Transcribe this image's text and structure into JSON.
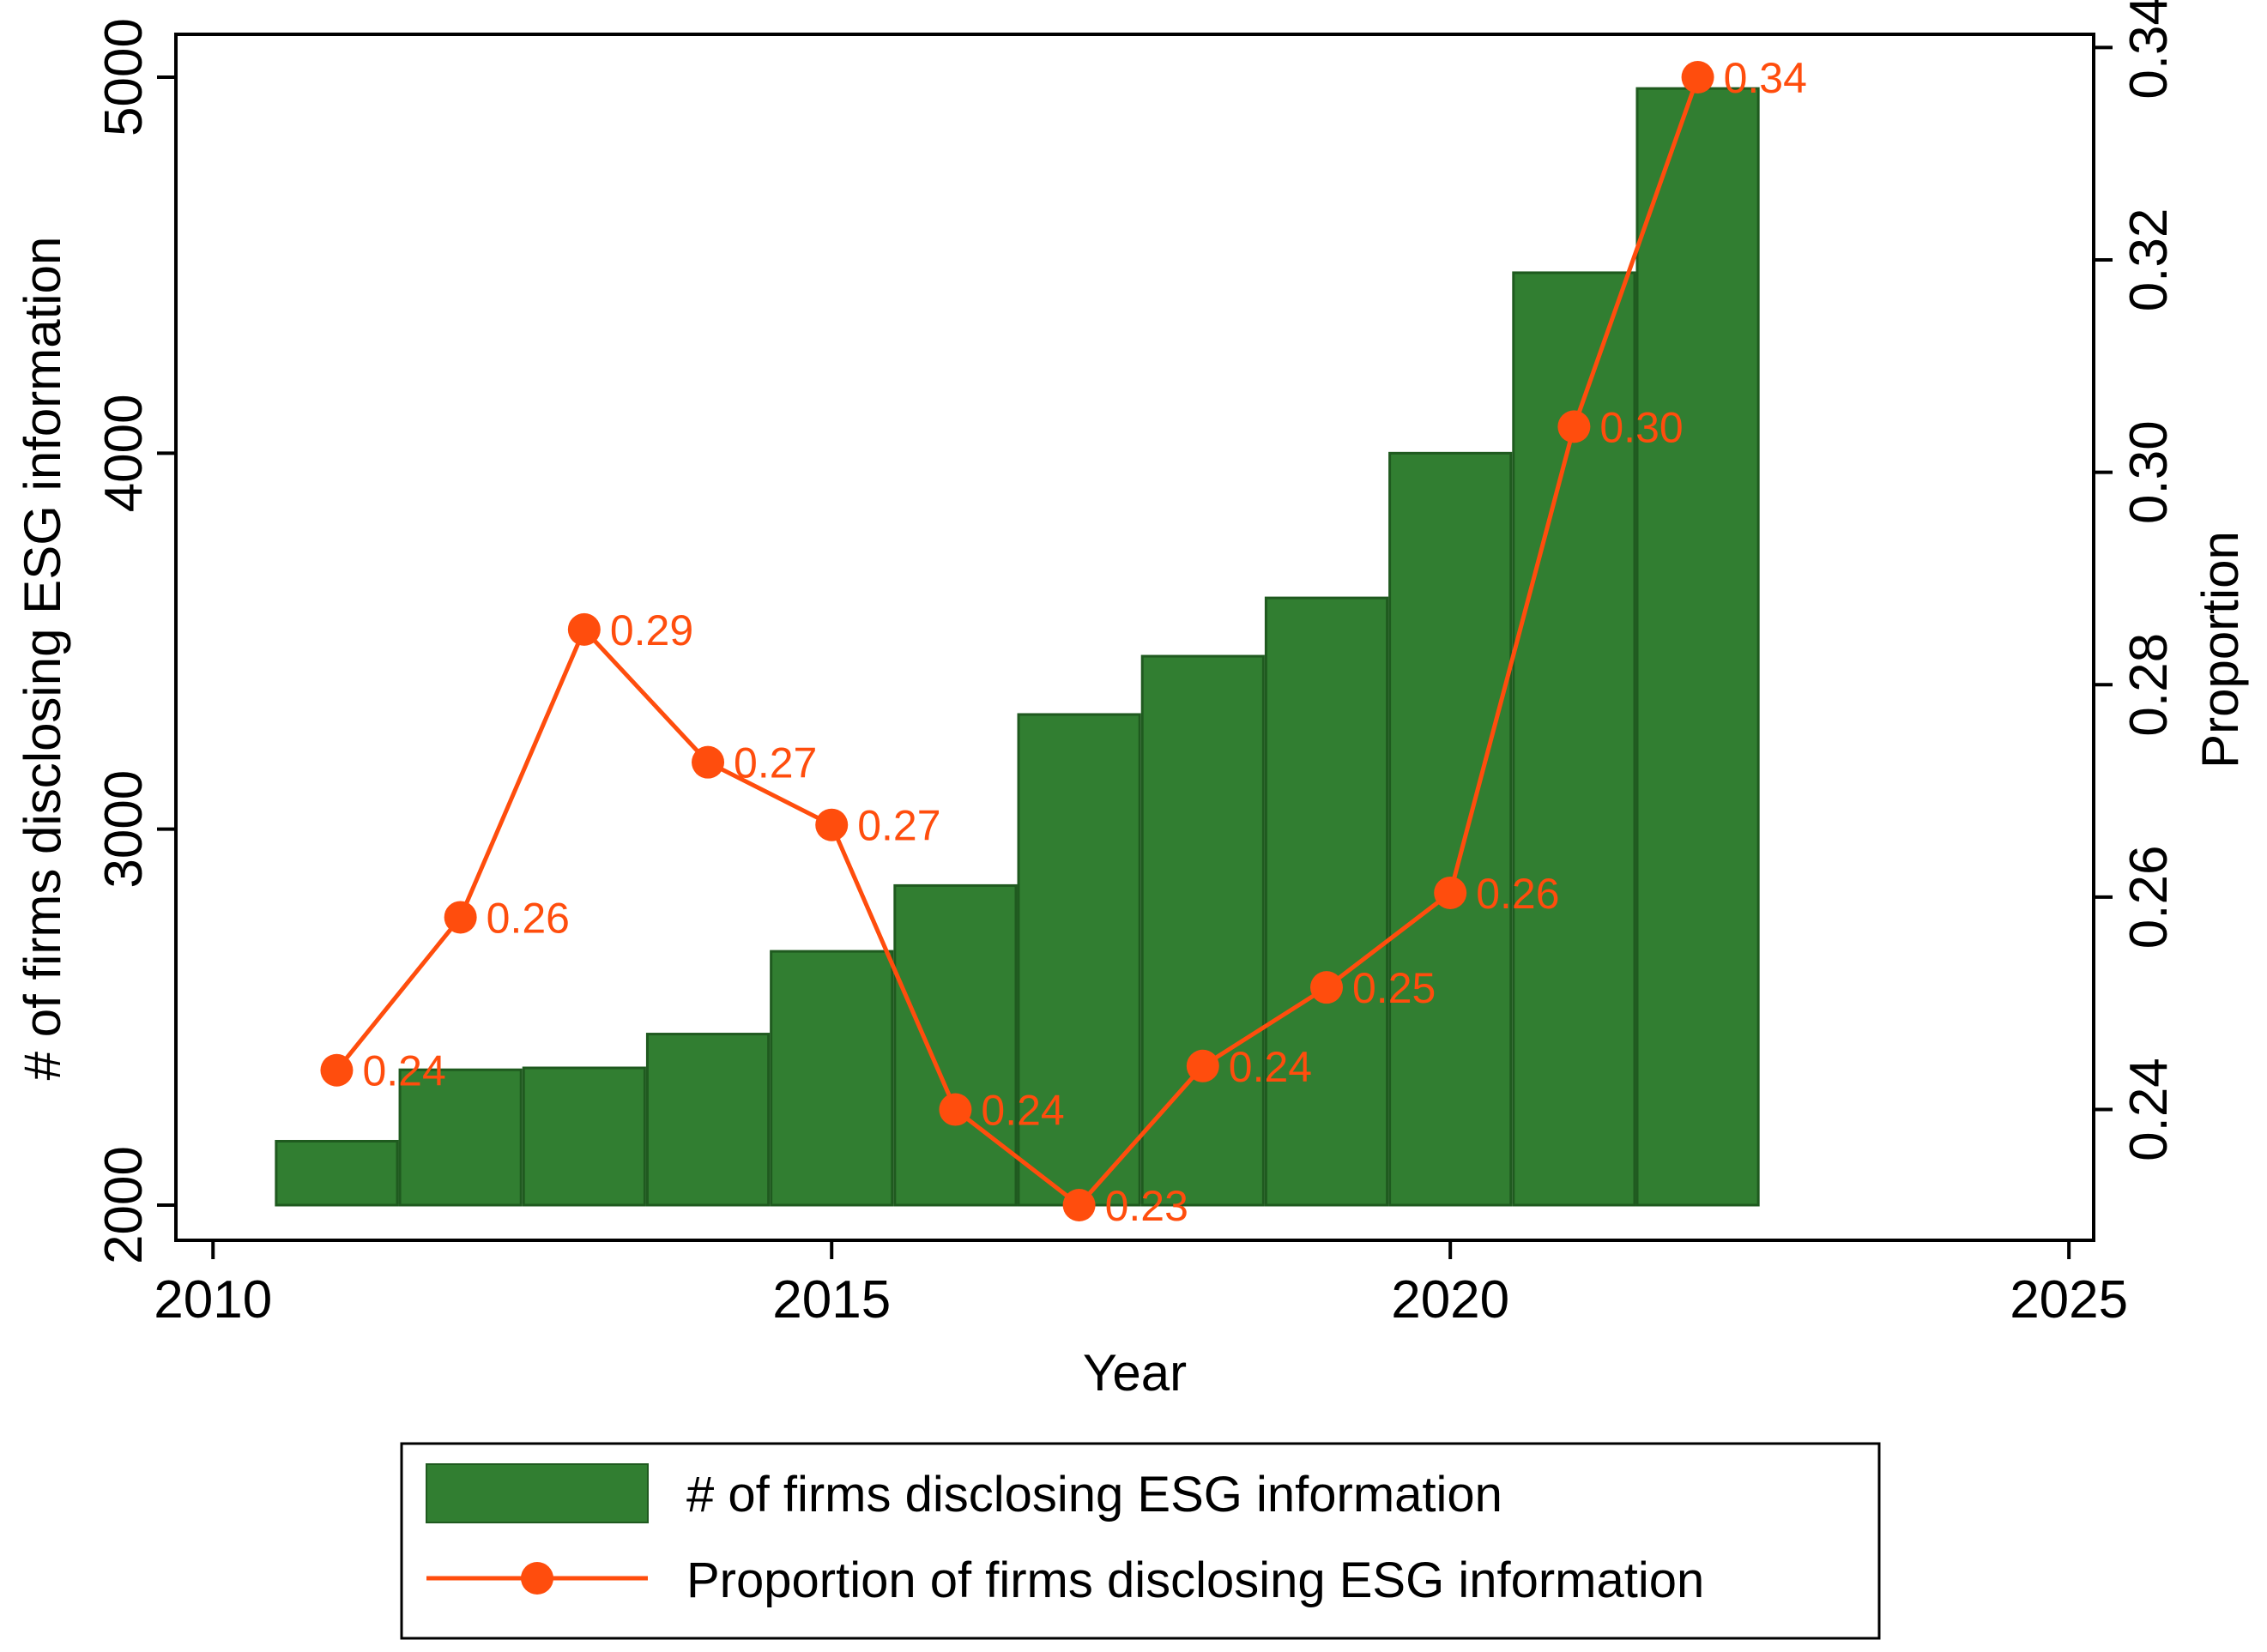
{
  "chart_data": {
    "type": "bar+line",
    "x": [
      2011,
      2012,
      2013,
      2014,
      2015,
      2016,
      2017,
      2018,
      2019,
      2020,
      2021,
      2022
    ],
    "series": [
      {
        "name": "# of firms disclosing ESG information",
        "type": "bar",
        "axis": "left",
        "color": "#317e31",
        "values": [
          2170,
          2360,
          2365,
          2455,
          2675,
          2850,
          3305,
          3460,
          3615,
          4000,
          4480,
          4970
        ]
      },
      {
        "name": "Proportion of firms disclosing ESG information",
        "type": "line",
        "axis": "right",
        "color": "#ff4d0d",
        "values": [
          0.2437,
          0.2581,
          0.2852,
          0.2727,
          0.2668,
          0.24,
          0.231,
          0.2441,
          0.2515,
          0.2604,
          0.3043,
          0.3372
        ],
        "labels": [
          "0.24",
          "0.26",
          "0.29",
          "0.27",
          "0.27",
          "0.24",
          "0.23",
          "0.24",
          "0.25",
          "0.26",
          "0.30",
          "0.34"
        ]
      }
    ],
    "xlabel": "Year",
    "ylabel_left": "# of firms disclosing ESG information",
    "ylabel_right": "Proportion",
    "xlim": [
      2009.7,
      2025.2
    ],
    "xticks": [
      2010,
      2015,
      2020,
      2025
    ],
    "xtick_labels": [
      "2010",
      "2015",
      "2020",
      "2025"
    ],
    "ylim_left": [
      2000,
      5000
    ],
    "yticks_left": [
      2000,
      3000,
      4000,
      5000
    ],
    "ytick_labels_left": [
      "2000",
      "3000",
      "4000",
      "5000"
    ],
    "ylim_right": [
      0.231,
      0.3372
    ],
    "yticks_right": [
      0.24,
      0.26,
      0.28,
      0.3,
      0.32,
      0.34
    ],
    "ytick_labels_right": [
      "0.24",
      "0.26",
      "0.28",
      "0.30",
      "0.32",
      "0.34"
    ],
    "grid": false,
    "legend_position": "bottom"
  }
}
